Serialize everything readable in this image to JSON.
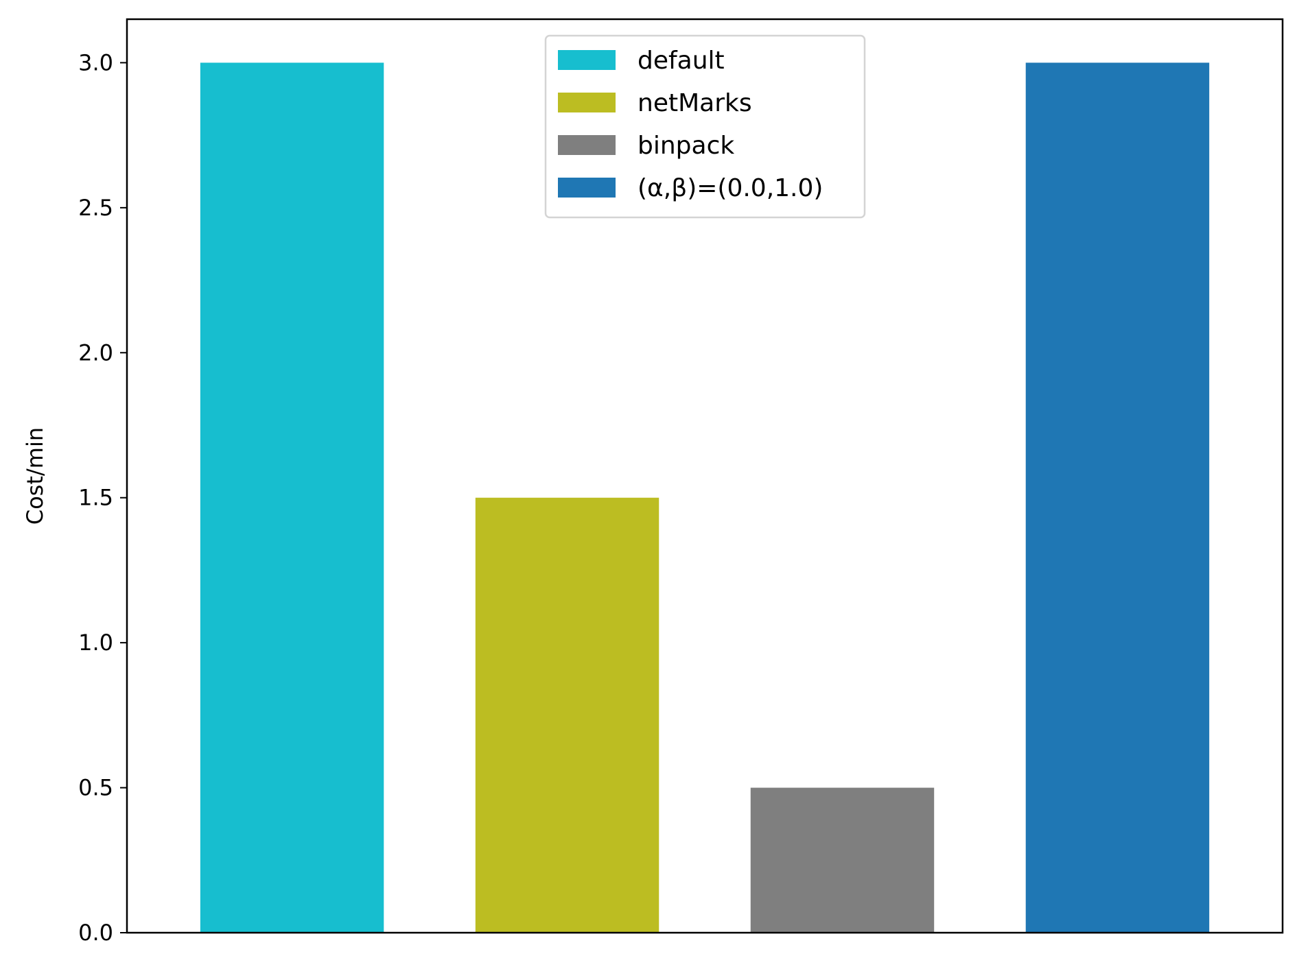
{
  "chart_data": {
    "type": "bar",
    "title": "",
    "xlabel": "",
    "ylabel": "Cost/min",
    "ylim": [
      0,
      3.15
    ],
    "yticks": [
      0.0,
      0.5,
      1.0,
      1.5,
      2.0,
      2.5,
      3.0
    ],
    "ytick_labels": [
      "0.0",
      "0.5",
      "1.0",
      "1.5",
      "2.0",
      "2.5",
      "3.0"
    ],
    "grid": false,
    "legend_position": "top-center",
    "series": [
      {
        "name": "default",
        "value": 3.0,
        "color": "#17becf"
      },
      {
        "name": "netMarks",
        "value": 1.5,
        "color": "#bcbd22"
      },
      {
        "name": "binpack",
        "value": 0.5,
        "color": "#7f7f7f"
      },
      {
        "name": "(α,β)=(0.0,1.0)",
        "value": 3.0,
        "color": "#1f77b4"
      }
    ]
  }
}
